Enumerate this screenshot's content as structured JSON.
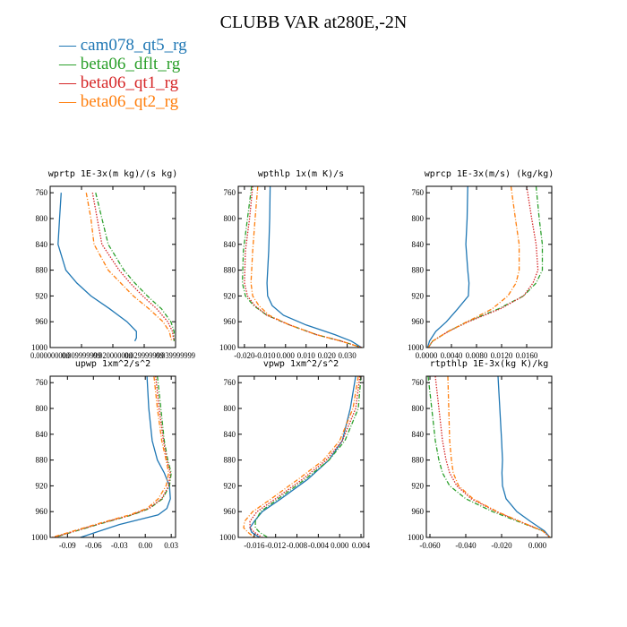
{
  "title": "CLUBB VAR at280E,-2N",
  "colors": {
    "cam078_qt5_rg": "#1f77b4",
    "beta06_dflt_rg": "#2ca02c",
    "beta06_qt1_rg": "#d62728",
    "beta06_qt2_rg": "#ff7f0e"
  },
  "legend": [
    {
      "label": "cam078_qt5_rg",
      "color": "#1f77b4",
      "dash": "solid"
    },
    {
      "label": "beta06_dflt_rg",
      "color": "#2ca02c",
      "dash": "dashdot"
    },
    {
      "label": "beta06_qt1_rg",
      "color": "#d62728",
      "dash": "dotted"
    },
    {
      "label": "beta06_qt2_rg",
      "color": "#ff7f0e",
      "dash": "dashdot"
    }
  ],
  "chart_data": [
    {
      "type": "line",
      "title": "wprtp  1E-3x(m kg)/(s kg)",
      "xlim": [
        0,
        0.04
      ],
      "ylim": [
        1000,
        750
      ],
      "xticks": [
        0,
        0.01,
        0.02,
        0.03,
        0.04
      ],
      "xticklabels": [
        "0.000000000",
        "0.009999999",
        "0.020000000",
        "0.029999999",
        "0.039999999"
      ],
      "yticks": [
        760,
        800,
        840,
        880,
        920,
        960,
        1000
      ],
      "y": [
        760,
        800,
        840,
        880,
        900,
        920,
        940,
        960,
        975,
        985,
        990
      ],
      "series": [
        {
          "name": "cam078_qt5_rg",
          "x": [
            0.0035,
            0.003,
            0.0025,
            0.005,
            0.0085,
            0.013,
            0.019,
            0.0245,
            0.0275,
            0.0275,
            0.027
          ]
        },
        {
          "name": "beta06_dflt_rg",
          "x": [
            0.0145,
            0.0165,
            0.0185,
            0.0235,
            0.027,
            0.031,
            0.0355,
            0.0385,
            0.0395,
            0.0395,
            0.0395
          ]
        },
        {
          "name": "beta06_qt1_rg",
          "x": [
            0.0135,
            0.015,
            0.0165,
            0.022,
            0.0255,
            0.0295,
            0.034,
            0.0375,
            0.039,
            0.0393,
            0.0395
          ]
        },
        {
          "name": "beta06_qt2_rg",
          "x": [
            0.0115,
            0.013,
            0.014,
            0.0185,
            0.0225,
            0.0265,
            0.0315,
            0.036,
            0.038,
            0.0385,
            0.0388
          ]
        }
      ]
    },
    {
      "type": "line",
      "title": "wpthlp  1x(m K)/s",
      "xlim": [
        -0.023,
        0.038
      ],
      "ylim": [
        1000,
        750
      ],
      "xticks": [
        -0.02,
        -0.01,
        0,
        0.01,
        0.02,
        0.03
      ],
      "xticklabels": [
        "-0.020",
        "-0.010",
        "0.000",
        "0.010",
        "0.020",
        "0.030"
      ],
      "yticks": [
        760,
        800,
        840,
        880,
        920,
        960,
        1000
      ],
      "y": [
        750,
        800,
        850,
        900,
        920,
        935,
        950,
        965,
        980,
        990,
        1000
      ],
      "series": [
        {
          "name": "cam078_qt5_rg",
          "x": [
            -0.0075,
            -0.0077,
            -0.0082,
            -0.009,
            -0.0087,
            -0.0065,
            -0.001,
            0.01,
            0.024,
            0.032,
            0.037
          ]
        },
        {
          "name": "beta06_dflt_rg",
          "x": [
            -0.0165,
            -0.0185,
            -0.0205,
            -0.021,
            -0.0195,
            -0.0155,
            -0.009,
            0.002,
            0.015,
            0.027,
            0.037
          ]
        },
        {
          "name": "beta06_qt1_rg",
          "x": [
            -0.016,
            -0.0175,
            -0.0195,
            -0.02,
            -0.0185,
            -0.015,
            -0.009,
            0.002,
            0.015,
            0.027,
            0.037
          ]
        },
        {
          "name": "beta06_qt2_rg",
          "x": [
            -0.0135,
            -0.0148,
            -0.016,
            -0.0168,
            -0.016,
            -0.013,
            -0.008,
            0.002,
            0.015,
            0.027,
            0.037
          ]
        }
      ]
    },
    {
      "type": "line",
      "title": "wprcp  1E-3x(m/s) (kg/kg)",
      "xlim": [
        0,
        0.02
      ],
      "ylim": [
        1000,
        750
      ],
      "xticks": [
        0,
        0.004,
        0.008,
        0.012,
        0.016
      ],
      "xticklabels": [
        "0.0000",
        "0.0040",
        "0.0080",
        "0.0120",
        "0.0160"
      ],
      "yticks": [
        760,
        800,
        840,
        880,
        920,
        960,
        1000
      ],
      "y": [
        750,
        800,
        840,
        880,
        900,
        920,
        940,
        960,
        975,
        990,
        1000
      ],
      "series": [
        {
          "name": "cam078_qt5_rg",
          "x": [
            0.0066,
            0.0065,
            0.0063,
            0.0066,
            0.0068,
            0.0067,
            0.005,
            0.0032,
            0.0015,
            0.0005,
            0.0002
          ]
        },
        {
          "name": "beta06_dflt_rg",
          "x": [
            0.0175,
            0.018,
            0.0185,
            0.0185,
            0.0175,
            0.0155,
            0.0115,
            0.0065,
            0.0035,
            0.001,
            0.0003
          ]
        },
        {
          "name": "beta06_qt1_rg",
          "x": [
            0.016,
            0.0168,
            0.0175,
            0.0178,
            0.017,
            0.0155,
            0.0118,
            0.0067,
            0.0035,
            0.001,
            0.0003
          ]
        },
        {
          "name": "beta06_qt2_rg",
          "x": [
            0.0135,
            0.0142,
            0.0148,
            0.0148,
            0.0143,
            0.013,
            0.0105,
            0.0065,
            0.0035,
            0.001,
            0.0003
          ]
        }
      ]
    },
    {
      "type": "line",
      "title": "upwp  1xm^2/s^2",
      "xlim": [
        -0.11,
        0.035
      ],
      "ylim": [
        1000,
        750
      ],
      "xticks": [
        -0.09,
        -0.06,
        -0.03,
        0,
        0.03
      ],
      "xticklabels": [
        "-0.09",
        "-0.06",
        "-0.03",
        "0.00",
        "0.03"
      ],
      "yticks": [
        760,
        800,
        840,
        880,
        920,
        960,
        1000
      ],
      "y": [
        750,
        800,
        850,
        880,
        900,
        920,
        940,
        955,
        965,
        980,
        1000
      ],
      "series": [
        {
          "name": "cam078_qt5_rg",
          "x": [
            0.002,
            0.004,
            0.008,
            0.014,
            0.022,
            0.028,
            0.029,
            0.025,
            0.015,
            -0.03,
            -0.075
          ]
        },
        {
          "name": "beta06_dflt_rg",
          "x": [
            0.014,
            0.018,
            0.022,
            0.026,
            0.03,
            0.028,
            0.02,
            0.005,
            -0.015,
            -0.055,
            -0.105
          ]
        },
        {
          "name": "beta06_qt1_rg",
          "x": [
            0.012,
            0.016,
            0.021,
            0.025,
            0.029,
            0.027,
            0.019,
            0.004,
            -0.016,
            -0.056,
            -0.106
          ]
        },
        {
          "name": "beta06_qt2_rg",
          "x": [
            0.01,
            0.014,
            0.019,
            0.024,
            0.027,
            0.024,
            0.015,
            0.002,
            -0.018,
            -0.058,
            -0.108
          ]
        }
      ]
    },
    {
      "type": "line",
      "title": "vpwp  1xm^2/s^2",
      "xlim": [
        -0.019,
        0.0045
      ],
      "ylim": [
        1000,
        750
      ],
      "xticks": [
        -0.016,
        -0.012,
        -0.008,
        -0.004,
        0,
        0.004
      ],
      "xticklabels": [
        "-0.016",
        "-0.012",
        "-0.008",
        "-0.004",
        "0.000",
        "0.004"
      ],
      "yticks": [
        760,
        800,
        840,
        880,
        920,
        960,
        1000
      ],
      "y": [
        750,
        800,
        850,
        880,
        910,
        940,
        960,
        975,
        985,
        992,
        1000
      ],
      "series": [
        {
          "name": "cam078_qt5_rg",
          "x": [
            0.003,
            0.002,
            0.0005,
            -0.002,
            -0.006,
            -0.011,
            -0.0145,
            -0.016,
            -0.0168,
            -0.0165,
            -0.015
          ]
        },
        {
          "name": "beta06_dflt_rg",
          "x": [
            0.004,
            0.0035,
            0.001,
            -0.002,
            -0.0065,
            -0.0115,
            -0.0148,
            -0.0158,
            -0.0158,
            -0.015,
            -0.0135
          ]
        },
        {
          "name": "beta06_qt1_rg",
          "x": [
            0.0038,
            0.003,
            0.0005,
            -0.0025,
            -0.007,
            -0.012,
            -0.0155,
            -0.0168,
            -0.0168,
            -0.016,
            -0.0145
          ]
        },
        {
          "name": "beta06_qt2_rg",
          "x": [
            0.0035,
            0.0025,
            0,
            -0.003,
            -0.0078,
            -0.0128,
            -0.0163,
            -0.0178,
            -0.018,
            -0.0172,
            -0.016
          ]
        }
      ]
    },
    {
      "type": "line",
      "title": "rtpthlp  1E-3x(kg K)/kg",
      "xlim": [
        -0.062,
        0.008
      ],
      "ylim": [
        1000,
        750
      ],
      "xticks": [
        -0.06,
        -0.04,
        -0.02,
        0
      ],
      "xticklabels": [
        "-0.060",
        "-0.040",
        "-0.020",
        "0.000"
      ],
      "yticks": [
        760,
        800,
        840,
        880,
        920,
        960,
        1000
      ],
      "y": [
        750,
        800,
        850,
        880,
        900,
        920,
        940,
        960,
        975,
        990,
        1000
      ],
      "series": [
        {
          "name": "cam078_qt5_rg",
          "x": [
            -0.022,
            -0.021,
            -0.02,
            -0.0195,
            -0.0198,
            -0.0195,
            -0.0175,
            -0.0115,
            -0.004,
            0.004,
            0.007
          ]
        },
        {
          "name": "beta06_dflt_rg",
          "x": [
            -0.061,
            -0.059,
            -0.057,
            -0.055,
            -0.053,
            -0.049,
            -0.04,
            -0.025,
            -0.011,
            0.003,
            0.007
          ]
        },
        {
          "name": "beta06_qt1_rg",
          "x": [
            -0.057,
            -0.055,
            -0.053,
            -0.051,
            -0.049,
            -0.045,
            -0.037,
            -0.023,
            -0.01,
            0.003,
            0.007
          ]
        },
        {
          "name": "beta06_qt2_rg",
          "x": [
            -0.05,
            -0.0495,
            -0.049,
            -0.048,
            -0.047,
            -0.044,
            -0.036,
            -0.0225,
            -0.01,
            0.003,
            0.007
          ]
        }
      ]
    }
  ]
}
